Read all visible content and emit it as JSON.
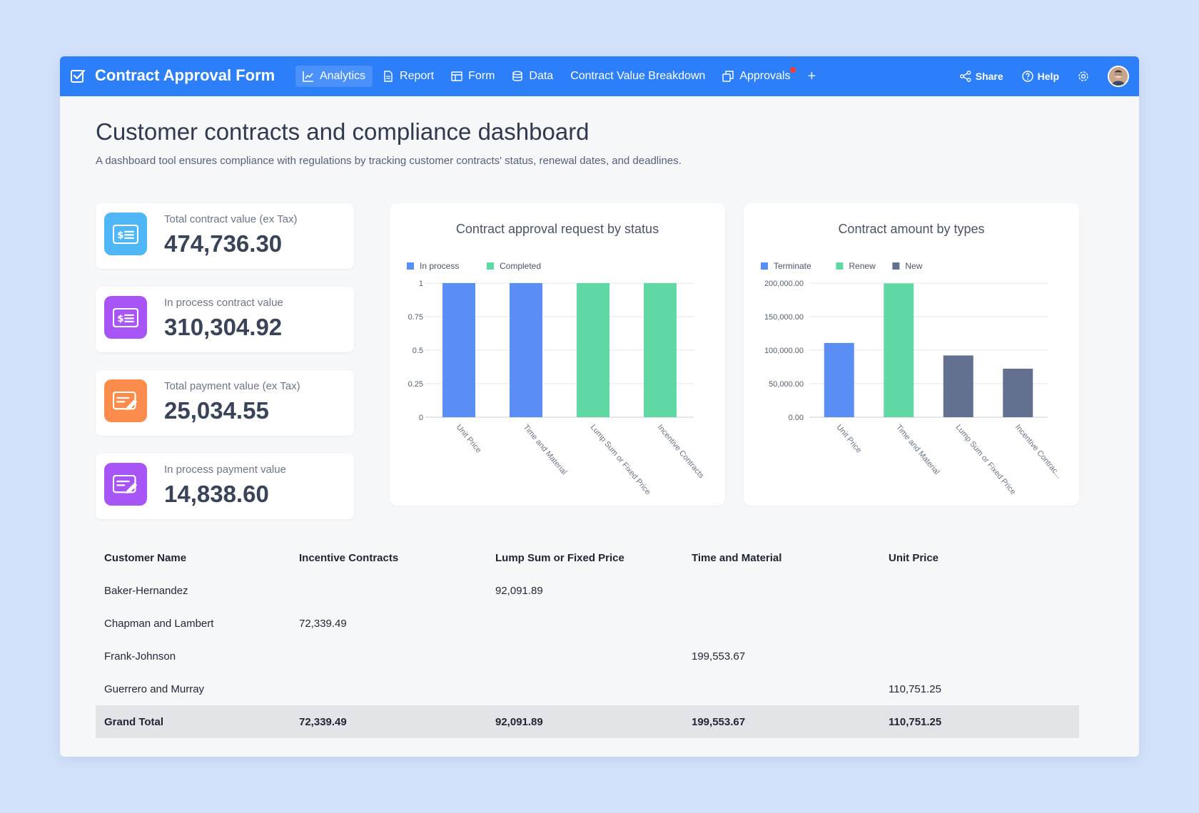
{
  "app": {
    "title": "Contract Approval Form",
    "accent": "#2d7ff9",
    "nav": [
      {
        "label": "Analytics",
        "icon": "line-chart-icon",
        "active": true
      },
      {
        "label": "Report",
        "icon": "document-icon"
      },
      {
        "label": "Form",
        "icon": "table-grid-icon"
      },
      {
        "label": "Data",
        "icon": "database-icon"
      },
      {
        "label": "Contract Value Breakdown"
      },
      {
        "label": "Approvals",
        "icon": "copy-icon",
        "notification": true
      }
    ],
    "actions": {
      "share": "Share",
      "help": "Help"
    }
  },
  "page": {
    "title": "Customer contracts and compliance dashboard",
    "subtitle": "A dashboard tool ensures compliance with regulations by tracking customer contracts' status, renewal dates, and deadlines."
  },
  "kpis": [
    {
      "label": "Total contract value (ex Tax)",
      "value": "474,736.30",
      "color": "#4fb7f5",
      "icon": "dollar-card-icon"
    },
    {
      "label": "In process contract value",
      "value": "310,304.92",
      "color": "#a855f7",
      "icon": "dollar-card-icon"
    },
    {
      "label": "Total payment value (ex Tax)",
      "value": "25,034.55",
      "color": "#fb8c4c",
      "icon": "edit-card-icon"
    },
    {
      "label": "In process payment value",
      "value": "14,838.60",
      "color": "#a855f7",
      "icon": "edit-card-icon"
    }
  ],
  "chart_data": [
    {
      "type": "bar",
      "title": "Contract approval request by status",
      "categories": [
        "Unit Price",
        "Time and Material",
        "Lump Sum or Fixed Price",
        "Incentive Contracts"
      ],
      "tick_labels": [
        "Unit Price",
        "Time and Material",
        "Lump Sum or Fixed Price",
        "Incentive Contracts"
      ],
      "series": [
        {
          "name": "In process",
          "color": "#5b8ef5",
          "values": [
            1,
            1,
            0,
            0
          ]
        },
        {
          "name": "Completed",
          "color": "#5fd8a4",
          "values": [
            0,
            0,
            1,
            1
          ]
        }
      ],
      "ylim": [
        0,
        1
      ],
      "yticks": [
        "0",
        "0.25",
        "0.5",
        "0.75",
        "1"
      ],
      "legend": "top-left",
      "grid": true
    },
    {
      "type": "bar",
      "title": "Contract amount by types",
      "categories": [
        "Unit Price",
        "Time and Material",
        "Lump Sum or Fixed Price",
        "Incentive Contracts"
      ],
      "tick_labels": [
        "Unit Price",
        "Time and Material",
        "Lump Sum or Fixed Price",
        "Incentive Contrac..."
      ],
      "series": [
        {
          "name": "Terminate",
          "color": "#5b8ef5",
          "values": [
            110751.25,
            0,
            0,
            0
          ]
        },
        {
          "name": "Renew",
          "color": "#5fd8a4",
          "values": [
            0,
            199553.67,
            0,
            0
          ]
        },
        {
          "name": "New",
          "color": "#63708f",
          "values": [
            0,
            0,
            92091.89,
            72339.49
          ]
        }
      ],
      "ylim": [
        0,
        200000
      ],
      "yticks": [
        "0.00",
        "50,000.00",
        "100,000.00",
        "150,000.00",
        "200,000.00"
      ],
      "legend": "top-left",
      "grid": true
    }
  ],
  "table": {
    "headers": [
      "Customer Name",
      "Incentive Contracts",
      "Lump Sum or Fixed Price",
      "Time and Material",
      "Unit Price"
    ],
    "rows": [
      [
        "Baker-Hernandez",
        "",
        "92,091.89",
        "",
        ""
      ],
      [
        "Chapman and Lambert",
        "72,339.49",
        "",
        "",
        ""
      ],
      [
        "Frank-Johnson",
        "",
        "",
        "199,553.67",
        ""
      ],
      [
        "Guerrero and Murray",
        "",
        "",
        "",
        "110,751.25"
      ]
    ],
    "total": [
      "Grand Total",
      "72,339.49",
      "92,091.89",
      "199,553.67",
      "110,751.25"
    ]
  }
}
